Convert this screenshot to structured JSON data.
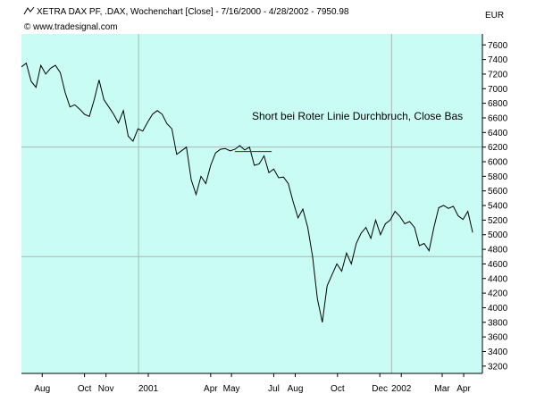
{
  "chart_data": {
    "type": "line",
    "title": "XETRA DAX PF, .DAX, Wochenchart [Close] - 7/16/2000 - 4/28/2002 - 7950.98",
    "credit": "© www.tradesignal.com",
    "currency": "EUR",
    "annotation": "Short bei Roter Linie Durchbruch, Close Bas",
    "ylim": [
      3100,
      7750
    ],
    "yticks": [
      3200,
      3400,
      3600,
      3800,
      4000,
      4200,
      4400,
      4600,
      4800,
      5000,
      5200,
      5400,
      5600,
      5800,
      6000,
      6200,
      6400,
      6600,
      6800,
      7000,
      7200,
      7400,
      7600
    ],
    "xlim": [
      "2000-07-16",
      "2002-05-12"
    ],
    "x_ticks": [
      {
        "date": "2000-08-15",
        "label": "Aug"
      },
      {
        "date": "2000-10-15",
        "label": "Oct"
      },
      {
        "date": "2000-11-15",
        "label": "Nov"
      },
      {
        "date": "2001-01-15",
        "label": "2001"
      },
      {
        "date": "2001-04-15",
        "label": "Apr"
      },
      {
        "date": "2001-05-15",
        "label": "May"
      },
      {
        "date": "2001-07-15",
        "label": "Jul"
      },
      {
        "date": "2001-08-15",
        "label": "Aug"
      },
      {
        "date": "2001-10-15",
        "label": "Oct"
      },
      {
        "date": "2001-12-15",
        "label": "Dec"
      },
      {
        "date": "2002-01-15",
        "label": "2002"
      },
      {
        "date": "2002-03-15",
        "label": "Mar"
      },
      {
        "date": "2002-04-15",
        "label": "Apr"
      }
    ],
    "gridlines": {
      "x": [
        "2001-01-01",
        "2002-01-01"
      ],
      "y": [
        4700,
        6200
      ]
    },
    "grid": "partial",
    "colors": {
      "background": "#c8fcf4",
      "line": "#000000",
      "red_line": "#cc0000",
      "grid": "#a8b8b4",
      "currency": "#cc0000"
    },
    "red_line": {
      "y": 6140,
      "x_start": "2001-05-20",
      "x_end": "2001-07-12"
    },
    "series": [
      {
        "x": [
          "2000-07-16",
          "2000-07-23",
          "2000-07-30",
          "2000-08-06",
          "2000-08-13",
          "2000-08-20",
          "2000-08-27",
          "2000-09-03",
          "2000-09-10",
          "2000-09-17",
          "2000-09-24",
          "2000-10-01",
          "2000-10-08",
          "2000-10-15",
          "2000-10-22",
          "2000-10-29",
          "2000-11-05",
          "2000-11-12",
          "2000-11-19",
          "2000-11-26",
          "2000-12-03",
          "2000-12-10",
          "2000-12-17",
          "2000-12-24",
          "2000-12-31",
          "2001-01-07",
          "2001-01-14",
          "2001-01-21",
          "2001-01-28",
          "2001-02-04",
          "2001-02-11",
          "2001-02-18",
          "2001-02-25",
          "2001-03-04",
          "2001-03-11",
          "2001-03-18",
          "2001-03-25",
          "2001-04-01",
          "2001-04-08",
          "2001-04-15",
          "2001-04-22",
          "2001-04-29",
          "2001-05-06",
          "2001-05-13",
          "2001-05-20",
          "2001-05-27",
          "2001-06-03",
          "2001-06-10",
          "2001-06-17",
          "2001-06-24",
          "2001-07-01",
          "2001-07-08",
          "2001-07-15",
          "2001-07-22",
          "2001-07-29",
          "2001-08-05",
          "2001-08-12",
          "2001-08-19",
          "2001-08-26",
          "2001-09-02",
          "2001-09-09",
          "2001-09-16",
          "2001-09-23",
          "2001-09-30",
          "2001-10-07",
          "2001-10-14",
          "2001-10-21",
          "2001-10-28",
          "2001-11-04",
          "2001-11-11",
          "2001-11-18",
          "2001-11-25",
          "2001-12-02",
          "2001-12-09",
          "2001-12-16",
          "2001-12-23",
          "2001-12-30",
          "2002-01-06",
          "2002-01-13",
          "2002-01-20",
          "2002-01-27",
          "2002-02-03",
          "2002-02-10",
          "2002-02-17",
          "2002-02-24",
          "2002-03-03",
          "2002-03-10",
          "2002-03-17",
          "2002-03-24",
          "2002-03-31",
          "2002-04-07",
          "2002-04-14",
          "2002-04-21",
          "2002-04-28"
        ],
        "values": [
          7300,
          7350,
          7100,
          7020,
          7320,
          7200,
          7280,
          7320,
          7220,
          6950,
          6750,
          6780,
          6720,
          6650,
          6620,
          6850,
          7120,
          6850,
          6750,
          6650,
          6530,
          6700,
          6350,
          6280,
          6450,
          6420,
          6540,
          6650,
          6700,
          6650,
          6520,
          6450,
          6100,
          6150,
          6200,
          5750,
          5550,
          5800,
          5700,
          5950,
          6120,
          6170,
          6180,
          6150,
          6170,
          6220,
          6160,
          6200,
          5950,
          5970,
          6080,
          5850,
          5900,
          5780,
          5790,
          5700,
          5450,
          5230,
          5350,
          5100,
          4700,
          4120,
          3800,
          4300,
          4450,
          4600,
          4500,
          4750,
          4600,
          4880,
          5020,
          5100,
          4950,
          5200,
          5000,
          5150,
          5200,
          5320,
          5250,
          5150,
          5180,
          5100,
          4850,
          4880,
          4780,
          5100,
          5370,
          5400,
          5360,
          5390,
          5260,
          5210,
          5320,
          5030
        ]
      }
    ]
  }
}
